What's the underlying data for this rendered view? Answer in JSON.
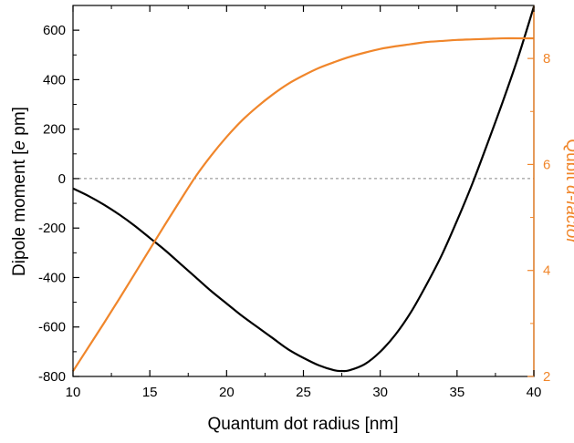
{
  "colors": {
    "dipole_series": "#000000",
    "qubit_series": "#f0862b",
    "zero_line": "#888888"
  },
  "chart_data": {
    "type": "line",
    "xlabel": "Quantum dot radius [nm]",
    "ylabel_left": {
      "pre": "Dipole moment [",
      "italic": "e",
      "post": " pm]"
    },
    "ylabel_right": {
      "pre": "Qubit ",
      "italic": "α-factor",
      "post": ""
    },
    "xlim": [
      10,
      40
    ],
    "ylim_left": [
      -800,
      700
    ],
    "ylim_right": [
      2,
      9
    ],
    "x_ticks": [
      "10",
      "15",
      "20",
      "25",
      "30",
      "35",
      "40"
    ],
    "y_left_ticks": [
      "600",
      "400",
      "200",
      "0",
      "-200",
      "-400",
      "-600",
      "-800"
    ],
    "y_right_ticks": [
      "2",
      "4",
      "6",
      "8"
    ],
    "zero_line": {
      "y": 0,
      "style": "dashed"
    },
    "grid": false,
    "legend": "none",
    "series": [
      {
        "axis": "left",
        "x": [
          10,
          11,
          12,
          13,
          14,
          15,
          16,
          17,
          18,
          19,
          20,
          21,
          22,
          23,
          24,
          25,
          26,
          27,
          27.5,
          28,
          29,
          30,
          31,
          32,
          33,
          34,
          35,
          36,
          37,
          38,
          39,
          40
        ],
        "values": [
          -40,
          -70,
          -105,
          -145,
          -190,
          -240,
          -290,
          -345,
          -400,
          -455,
          -505,
          -555,
          -600,
          -645,
          -690,
          -725,
          -755,
          -775,
          -778,
          -775,
          -750,
          -700,
          -630,
          -540,
          -430,
          -310,
          -170,
          -20,
          145,
          315,
          495,
          695
        ]
      },
      {
        "axis": "right",
        "x": [
          10,
          11,
          12,
          13,
          14,
          15,
          16,
          17,
          18,
          19,
          20,
          21,
          22,
          23,
          24,
          25,
          26,
          27,
          28,
          29,
          30,
          31,
          32,
          33,
          34,
          35,
          36,
          37,
          38,
          39,
          40
        ],
        "values": [
          2.1,
          2.55,
          3.0,
          3.46,
          3.93,
          4.4,
          4.87,
          5.33,
          5.78,
          6.17,
          6.52,
          6.83,
          7.09,
          7.32,
          7.52,
          7.68,
          7.82,
          7.93,
          8.03,
          8.11,
          8.18,
          8.23,
          8.27,
          8.31,
          8.33,
          8.35,
          8.36,
          8.37,
          8.38,
          8.38,
          8.38
        ]
      }
    ]
  }
}
